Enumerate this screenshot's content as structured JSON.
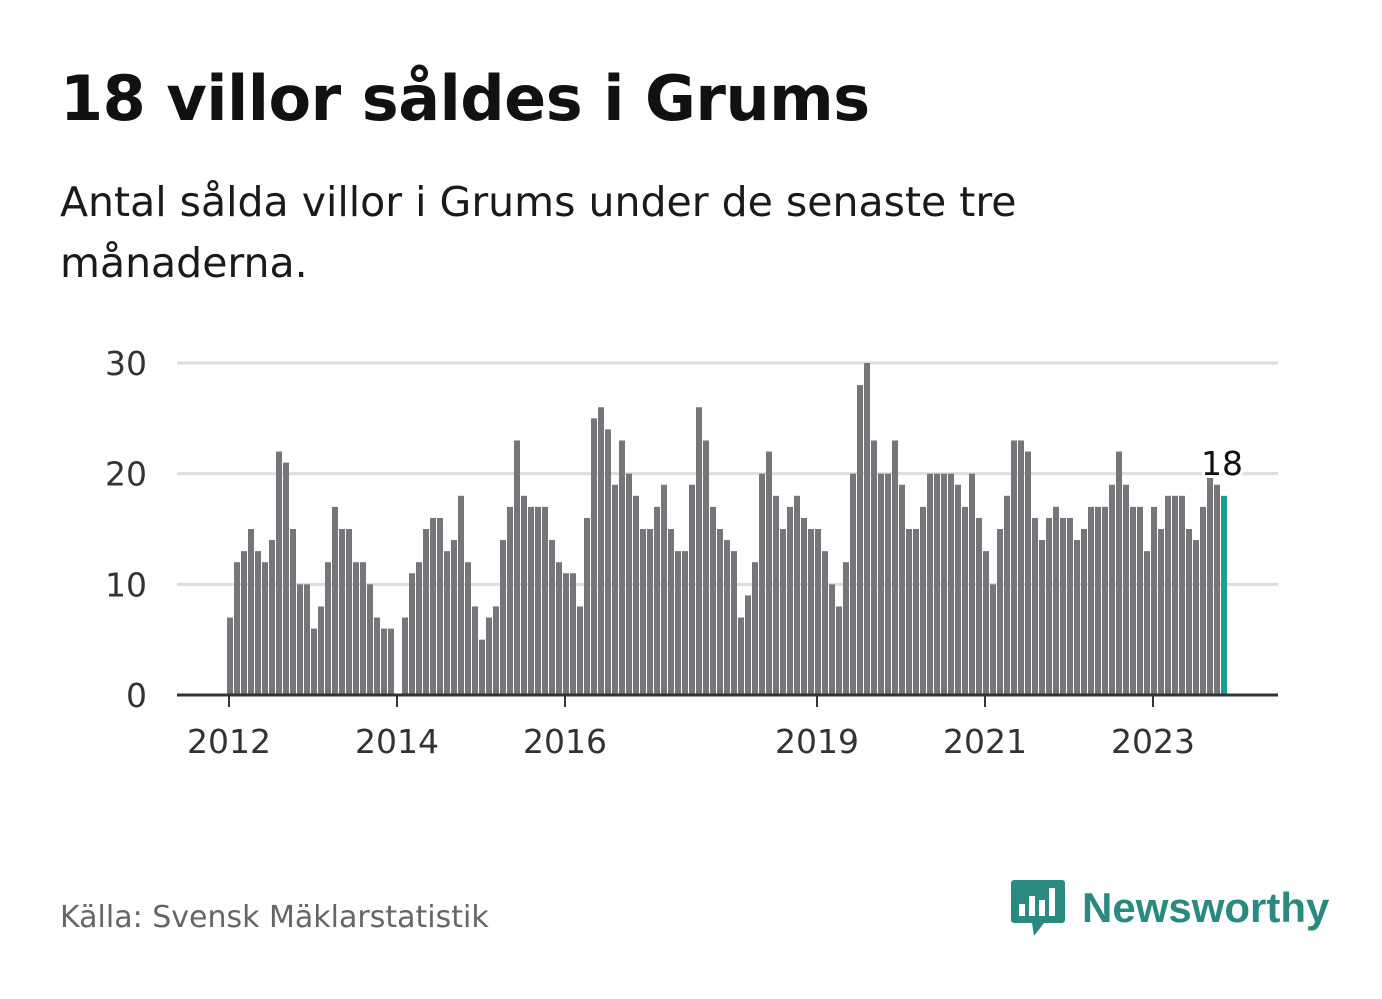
{
  "header": {
    "title": "18 villor såldes i Grums",
    "subtitle": "Antal sålda villor i Grums under de senaste tre månaderna."
  },
  "footer": {
    "source": "Källa: Svensk Mäklarstatistik",
    "brand": "Newsworthy",
    "brand_icon": "bar-chart-speech-bubble-icon"
  },
  "colors": {
    "bar": "#76767a",
    "highlight": "#1a9e93",
    "grid": "#dddddd",
    "axis": "#333333",
    "brand": "#2a8a80"
  },
  "chart_data": {
    "type": "bar",
    "title": "18 villor såldes i Grums",
    "subtitle": "Antal sålda villor i Grums under de senaste tre månaderna.",
    "xlabel": "",
    "ylabel": "",
    "ylim": [
      0,
      30
    ],
    "yticks": [
      0,
      10,
      20,
      30
    ],
    "grid": true,
    "x_start": "2012-01",
    "x_unit": "month",
    "xtick_labels": [
      {
        "label": "2012",
        "date": "2012-01"
      },
      {
        "label": "2014",
        "date": "2014-01"
      },
      {
        "label": "2016",
        "date": "2016-01"
      },
      {
        "label": "2019",
        "date": "2019-01"
      },
      {
        "label": "2021",
        "date": "2021-01"
      },
      {
        "label": "2023",
        "date": "2023-01"
      }
    ],
    "values": [
      7,
      12,
      13,
      15,
      13,
      12,
      14,
      22,
      21,
      15,
      10,
      10,
      6,
      8,
      12,
      17,
      15,
      15,
      12,
      12,
      10,
      7,
      6,
      6,
      0,
      7,
      11,
      12,
      15,
      16,
      16,
      13,
      14,
      18,
      12,
      8,
      5,
      7,
      8,
      14,
      17,
      23,
      18,
      17,
      17,
      17,
      14,
      12,
      11,
      11,
      8,
      16,
      25,
      26,
      24,
      19,
      23,
      20,
      18,
      15,
      15,
      17,
      19,
      15,
      13,
      13,
      19,
      26,
      23,
      17,
      15,
      14,
      13,
      7,
      9,
      12,
      20,
      22,
      18,
      15,
      17,
      18,
      16,
      15,
      15,
      13,
      10,
      8,
      12,
      20,
      28,
      30,
      23,
      20,
      20,
      23,
      19,
      15,
      15,
      17,
      20,
      20,
      20,
      20,
      19,
      17,
      20,
      16,
      13,
      10,
      15,
      18,
      23,
      23,
      22,
      16,
      14,
      16,
      17,
      16,
      16,
      14,
      15,
      17,
      17,
      17,
      19,
      22,
      19,
      17,
      17,
      13,
      17,
      15,
      18,
      18,
      18,
      15,
      14,
      17,
      20,
      19,
      18
    ],
    "highlight_last": true,
    "annotation": {
      "text": "18",
      "value": 18,
      "target": "last"
    }
  }
}
